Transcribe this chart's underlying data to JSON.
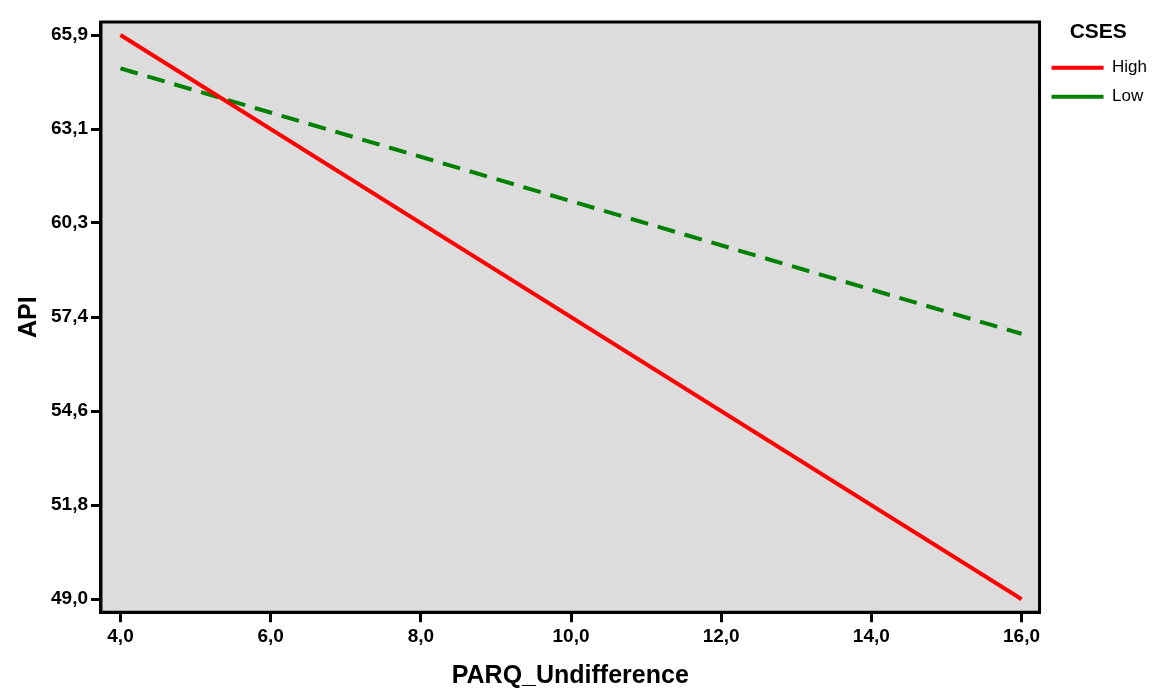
{
  "chart_data": {
    "type": "line",
    "xlabel": "PARQ_Undifference",
    "ylabel": "API",
    "legend_title": "CSES",
    "legend": "top right",
    "marker": "none",
    "grid": false,
    "x": [
      4,
      16
    ],
    "series": [
      {
        "name": "High",
        "color": "#ff0000",
        "values": [
          65.9,
          49.0
        ],
        "line_style": "solid"
      },
      {
        "name": "Low",
        "color": "#008000",
        "values": [
          64.9,
          56.95
        ],
        "line_style": "dashed"
      }
    ],
    "xlim": [
      3.74,
      16.24
    ],
    "ylim": [
      48.61,
      66.29
    ],
    "xticks": [
      {
        "value": 4,
        "label": "4,0"
      },
      {
        "value": 6,
        "label": "6,0"
      },
      {
        "value": 8,
        "label": "8,0"
      },
      {
        "value": 10,
        "label": "10,0"
      },
      {
        "value": 12,
        "label": "12,0"
      },
      {
        "value": 14,
        "label": "14,0"
      },
      {
        "value": 16,
        "label": "16,0"
      }
    ],
    "yticks": [
      {
        "value": 49.0,
        "label": "49,0"
      },
      {
        "value": 51.82,
        "label": "51,8"
      },
      {
        "value": 54.63,
        "label": "54,6"
      },
      {
        "value": 57.45,
        "label": "57,4"
      },
      {
        "value": 60.27,
        "label": "60,3"
      },
      {
        "value": 63.08,
        "label": "63,1"
      },
      {
        "value": 65.9,
        "label": "65,9"
      }
    ]
  }
}
